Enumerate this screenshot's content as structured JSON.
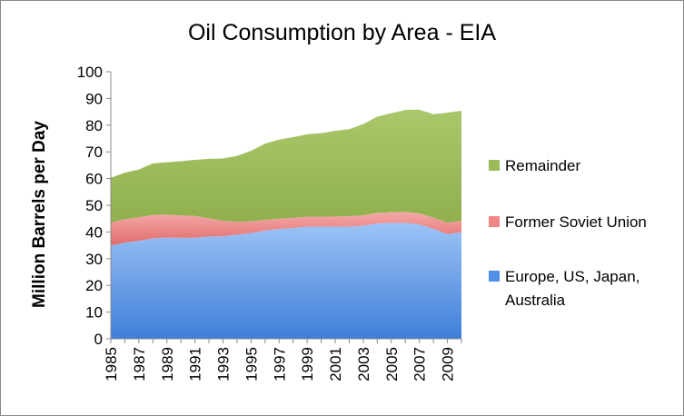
{
  "chart_data": {
    "type": "area",
    "stacked": true,
    "title": "Oil Consumption by Area - EIA",
    "xlabel": "",
    "ylabel": "Million Barrels per Day",
    "ylim": [
      0,
      100
    ],
    "yticks": [
      0,
      10,
      20,
      30,
      40,
      50,
      60,
      70,
      80,
      90,
      100
    ],
    "x": [
      1985,
      1986,
      1987,
      1988,
      1989,
      1990,
      1991,
      1992,
      1993,
      1994,
      1995,
      1996,
      1997,
      1998,
      1999,
      2000,
      2001,
      2002,
      2003,
      2004,
      2005,
      2006,
      2007,
      2008,
      2009,
      2010
    ],
    "xtick_labels": [
      "1985",
      "1987",
      "1989",
      "1991",
      "1993",
      "1995",
      "1997",
      "1999",
      "2001",
      "2003",
      "2005",
      "2007",
      "2009"
    ],
    "series": [
      {
        "name": "Europe, US, Japan, Australia",
        "color": "#4f8fe6",
        "values": [
          34.9,
          36.0,
          36.7,
          37.6,
          37.9,
          37.8,
          37.8,
          38.3,
          38.4,
          39.0,
          39.6,
          40.5,
          41.1,
          41.5,
          42.0,
          42.0,
          42.0,
          42.0,
          42.4,
          43.2,
          43.4,
          43.4,
          42.8,
          41.2,
          39.2,
          39.9
        ]
      },
      {
        "name": "Former Soviet Union",
        "color": "#f08585",
        "values": [
          8.6,
          8.8,
          8.8,
          8.8,
          8.6,
          8.4,
          8.2,
          6.8,
          5.8,
          4.8,
          4.4,
          4.0,
          3.9,
          3.8,
          3.7,
          3.7,
          3.8,
          3.9,
          3.9,
          3.9,
          4.0,
          4.1,
          4.2,
          4.2,
          4.3,
          4.3
        ]
      },
      {
        "name": "Remainder",
        "color": "#9bbb59",
        "values": [
          16.8,
          17.4,
          17.9,
          19.3,
          19.6,
          20.3,
          21.0,
          22.3,
          23.3,
          24.7,
          26.4,
          28.6,
          29.6,
          30.2,
          30.9,
          31.3,
          32.1,
          32.6,
          34.1,
          36.1,
          37.1,
          38.2,
          38.8,
          38.7,
          41.2,
          41.2
        ]
      }
    ],
    "legend_order": [
      "Remainder",
      "Former Soviet Union",
      "Europe, US, Japan, Australia"
    ],
    "legend_position": "right",
    "grid": false
  }
}
